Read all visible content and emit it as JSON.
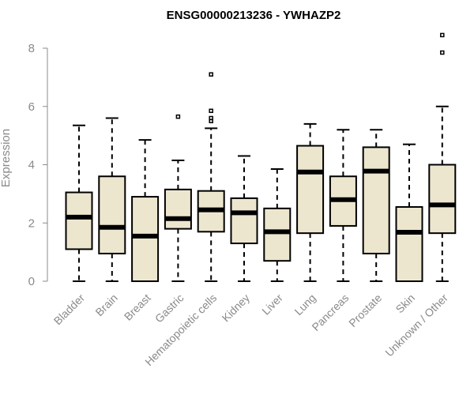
{
  "chart_data": {
    "type": "boxplot",
    "title": "ENSG00000213236 - YWHAZP2",
    "xlabel": "",
    "ylabel": "Expression",
    "ylim": [
      0,
      8.6
    ],
    "yticks": [
      0,
      2,
      4,
      6,
      8
    ],
    "categories": [
      "Bladder",
      "Brain",
      "Breast",
      "Gastric",
      "Hematopoietic cells",
      "Kidney",
      "Liver",
      "Lung",
      "Pancreas",
      "Prostate",
      "Skin",
      "Unknown / Other"
    ],
    "boxes": [
      {
        "min": 0.0,
        "q1": 1.1,
        "median": 2.2,
        "q3": 3.05,
        "max": 5.35,
        "outliers": []
      },
      {
        "min": 0.0,
        "q1": 0.95,
        "median": 1.85,
        "q3": 3.6,
        "max": 5.6,
        "outliers": []
      },
      {
        "min": 0.0,
        "q1": 0.0,
        "median": 1.55,
        "q3": 2.9,
        "max": 4.85,
        "outliers": []
      },
      {
        "min": 0.0,
        "q1": 1.8,
        "median": 2.15,
        "q3": 3.15,
        "max": 4.15,
        "outliers": [
          5.65
        ]
      },
      {
        "min": 0.0,
        "q1": 1.7,
        "median": 2.45,
        "q3": 3.1,
        "max": 5.25,
        "outliers": [
          5.5,
          5.6,
          5.85,
          7.1
        ]
      },
      {
        "min": 0.0,
        "q1": 1.3,
        "median": 2.35,
        "q3": 2.85,
        "max": 4.3,
        "outliers": []
      },
      {
        "min": 0.0,
        "q1": 0.7,
        "median": 1.7,
        "q3": 2.5,
        "max": 3.85,
        "outliers": []
      },
      {
        "min": 0.0,
        "q1": 1.65,
        "median": 3.75,
        "q3": 4.65,
        "max": 5.4,
        "outliers": []
      },
      {
        "min": 0.0,
        "q1": 1.9,
        "median": 2.8,
        "q3": 3.6,
        "max": 5.2,
        "outliers": []
      },
      {
        "min": 0.0,
        "q1": 0.95,
        "median": 3.78,
        "q3": 4.6,
        "max": 5.2,
        "outliers": []
      },
      {
        "min": 0.0,
        "q1": 0.0,
        "median": 1.68,
        "q3": 2.55,
        "max": 4.7,
        "outliers": []
      },
      {
        "min": 0.0,
        "q1": 1.65,
        "median": 2.62,
        "q3": 4.0,
        "max": 6.0,
        "outliers": [
          7.85,
          8.45
        ]
      }
    ],
    "grid": false,
    "legend": "none"
  }
}
